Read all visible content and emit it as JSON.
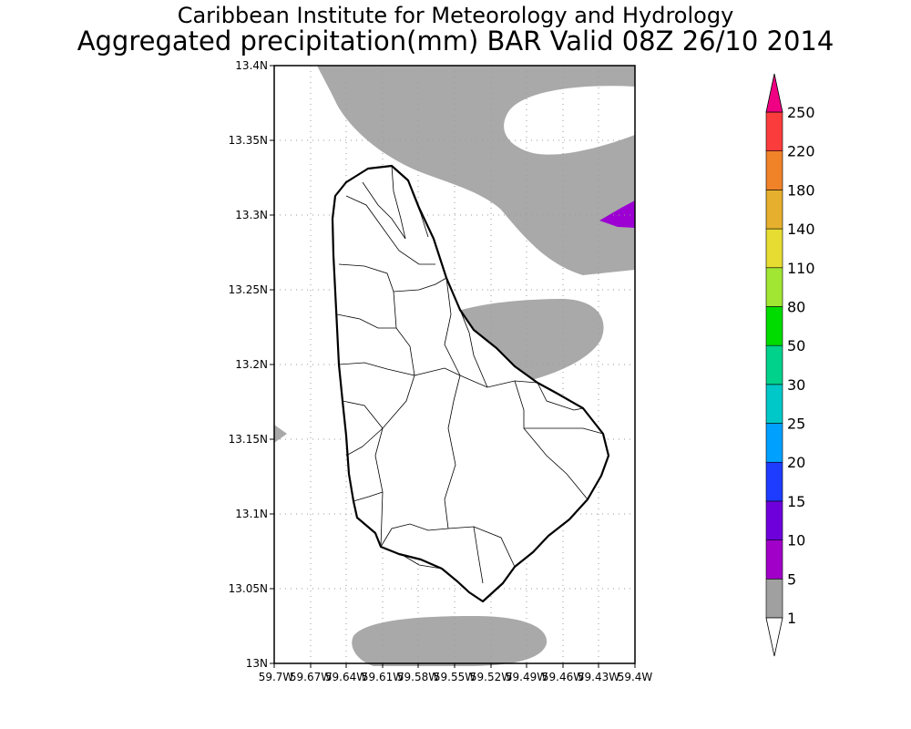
{
  "title_line1": "Caribbean Institute for Meteorology and Hydrology",
  "title_line2": "Aggregated precipitation(mm) BAR Valid 08Z 26/10 2014",
  "map": {
    "lat_ticks": [
      "13.4N",
      "13.35N",
      "13.3N",
      "13.25N",
      "13.2N",
      "13.15N",
      "13.1N",
      "13.05N",
      "13N"
    ],
    "lon_ticks": [
      "59.7W",
      "59.67W",
      "59.64W",
      "59.61W",
      "59.58W",
      "59.55W",
      "59.52W",
      "59.49W",
      "59.46W",
      "59.43W",
      "59.4W"
    ],
    "lat_range": [
      13.0,
      13.4
    ],
    "lon_range": [
      -59.7,
      -59.4
    ],
    "grid": true
  },
  "colorbar": {
    "labels": [
      "1",
      "5",
      "10",
      "15",
      "20",
      "25",
      "30",
      "50",
      "80",
      "110",
      "140",
      "180",
      "220",
      "250"
    ],
    "colors": [
      "#a0a0a0",
      "#a000c8",
      "#6e00dc",
      "#1e3cff",
      "#00a0ff",
      "#00c8c8",
      "#00d28c",
      "#00dc00",
      "#a0e632",
      "#e6dc32",
      "#e6af2d",
      "#f08228",
      "#fa3c3c",
      "#f00082"
    ]
  }
}
